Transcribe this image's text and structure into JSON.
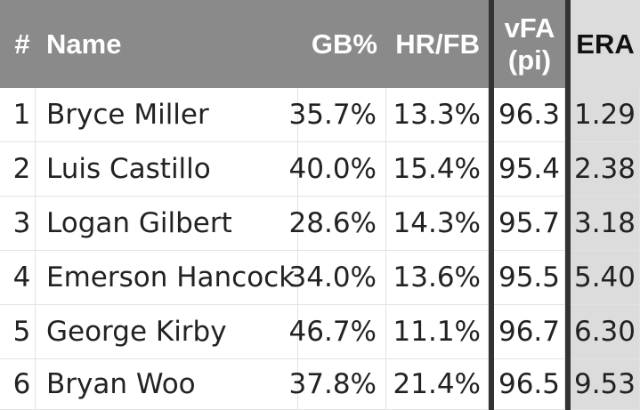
{
  "columns": {
    "number": "#",
    "name": "Name",
    "gb_pct": "GB%",
    "hr_fb": "HR/FB",
    "vfa_line1": "vFA",
    "vfa_line2": "(pi)",
    "era": "ERA"
  },
  "rows": [
    {
      "num": "1",
      "name": "Bryce Miller",
      "gb": "35.7%",
      "hrfb": "13.3%",
      "vfa": "96.3",
      "era": "1.29"
    },
    {
      "num": "2",
      "name": "Luis Castillo",
      "gb": "40.0%",
      "hrfb": "15.4%",
      "vfa": "95.4",
      "era": "2.38"
    },
    {
      "num": "3",
      "name": "Logan Gilbert",
      "gb": "28.6%",
      "hrfb": "14.3%",
      "vfa": "95.7",
      "era": "3.18"
    },
    {
      "num": "4",
      "name": "Emerson Hancock",
      "gb": "34.0%",
      "hrfb": "13.6%",
      "vfa": "95.5",
      "era": "5.40"
    },
    {
      "num": "5",
      "name": "George Kirby",
      "gb": "46.7%",
      "hrfb": "11.1%",
      "vfa": "96.7",
      "era": "6.30"
    },
    {
      "num": "6",
      "name": "Bryan Woo",
      "gb": "37.8%",
      "hrfb": "21.4%",
      "vfa": "96.5",
      "era": "9.53"
    }
  ],
  "colors": {
    "header_bg": "#8a8a8a",
    "sorted_column_bg": "#dcdcdc",
    "separator": "#333333"
  }
}
